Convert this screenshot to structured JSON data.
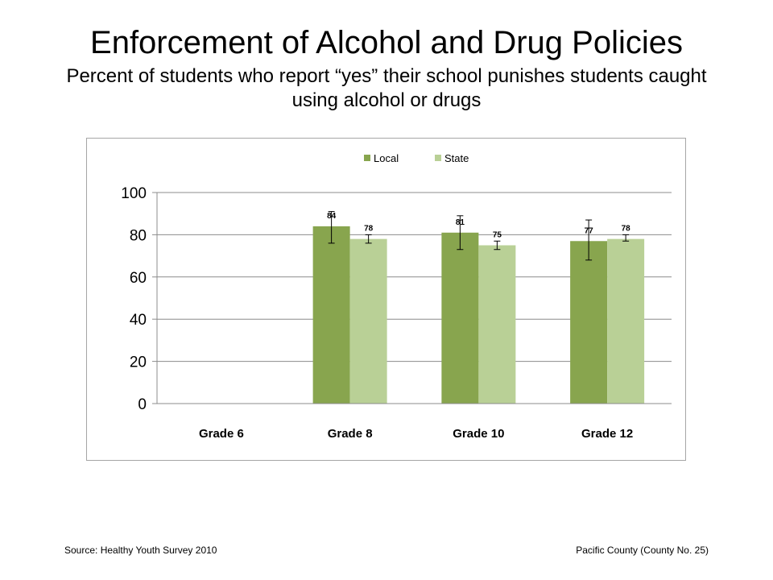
{
  "slide": {
    "title": "Enforcement of Alcohol and Drug Policies",
    "subtitle": "Percent of students who report “yes” their school punishes students caught using alcohol or drugs"
  },
  "footer": {
    "source": "Source: Healthy Youth Survey 2010",
    "county": "Pacific County (County No. 25)"
  },
  "chart_data": {
    "type": "bar",
    "title": "",
    "xlabel": "",
    "ylabel": "",
    "categories": [
      "Grade 6",
      "Grade 8",
      "Grade 10",
      "Grade 12"
    ],
    "series": [
      {
        "name": "Local",
        "color": "#88a54e",
        "values": [
          null,
          84,
          81,
          77
        ],
        "labels": [
          "",
          "84",
          "81",
          "77"
        ],
        "error_low": [
          null,
          76,
          73,
          68
        ],
        "error_high": [
          null,
          91,
          89,
          87
        ]
      },
      {
        "name": "State",
        "color": "#b9d096",
        "values": [
          null,
          78,
          75,
          78
        ],
        "labels": [
          "",
          "78",
          "75",
          "78"
        ],
        "error_low": [
          null,
          76,
          73,
          77
        ],
        "error_high": [
          null,
          80,
          77,
          80
        ]
      }
    ],
    "ylim": [
      0,
      100
    ],
    "yticks": [
      "0",
      "20",
      "40",
      "60",
      "80",
      "100"
    ],
    "grid": true,
    "legend_position": "top-center"
  }
}
